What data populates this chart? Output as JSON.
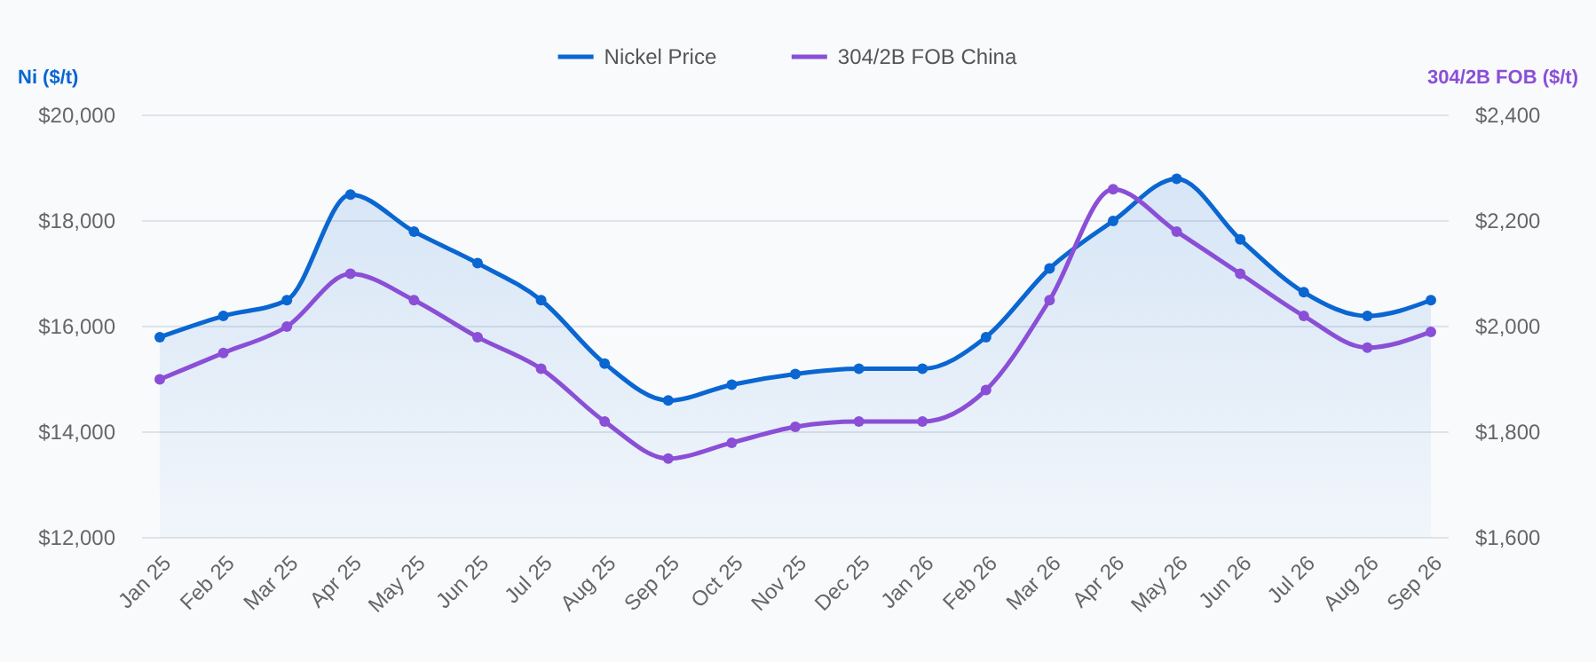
{
  "chart_data": {
    "type": "line",
    "categories": [
      "Jan 25",
      "Feb 25",
      "Mar 25",
      "Apr 25",
      "May 25",
      "Jun 25",
      "Jul 25",
      "Aug 25",
      "Sep 25",
      "Oct 25",
      "Nov 25",
      "Dec 25",
      "Jan 26",
      "Feb 26",
      "Mar 26",
      "Apr 26",
      "May 26",
      "Jun 26",
      "Jul 26",
      "Aug 26",
      "Sep 26"
    ],
    "series": [
      {
        "name": "Nickel Price",
        "type": "area",
        "color": "#0a66d1",
        "values": [
          15800,
          16200,
          16500,
          18500,
          17800,
          17200,
          16500,
          15300,
          14600,
          14900,
          15100,
          15200,
          15200,
          15800,
          17100,
          18000,
          18800,
          17650,
          16650,
          16200,
          16500
        ]
      },
      {
        "name": "304/2B FOB China",
        "axis": "y2",
        "color": "#8a4fd6",
        "values": [
          1900,
          1950,
          2000,
          2100,
          2050,
          1980,
          1920,
          1820,
          1750,
          1780,
          1810,
          1820,
          1820,
          1880,
          2050,
          2260,
          2180,
          2100,
          2020,
          1960,
          1990
        ]
      }
    ],
    "ylabel": "Ni ($/t)",
    "y2label": "304/2B FOB ($/t)",
    "ylim": [
      12000,
      20000
    ],
    "yticks": [
      {
        "value": 12000,
        "label": "$12,000"
      },
      {
        "value": 14000,
        "label": "$14,000"
      },
      {
        "value": 16000,
        "label": "$16,000"
      },
      {
        "value": 18000,
        "label": "$18,000"
      },
      {
        "value": 20000,
        "label": "$20,000"
      }
    ],
    "y2lim": [
      1600,
      2400
    ],
    "y2ticks": [
      {
        "value": 1600,
        "label": "$1,600"
      },
      {
        "value": 1800,
        "label": "$1,800"
      },
      {
        "value": 2000,
        "label": "$2,000"
      },
      {
        "value": 2200,
        "label": "$2,200"
      },
      {
        "value": 2400,
        "label": "$2,400"
      }
    ],
    "grid": "y",
    "legend": "top",
    "marker": "circle",
    "line_style": "solid"
  }
}
